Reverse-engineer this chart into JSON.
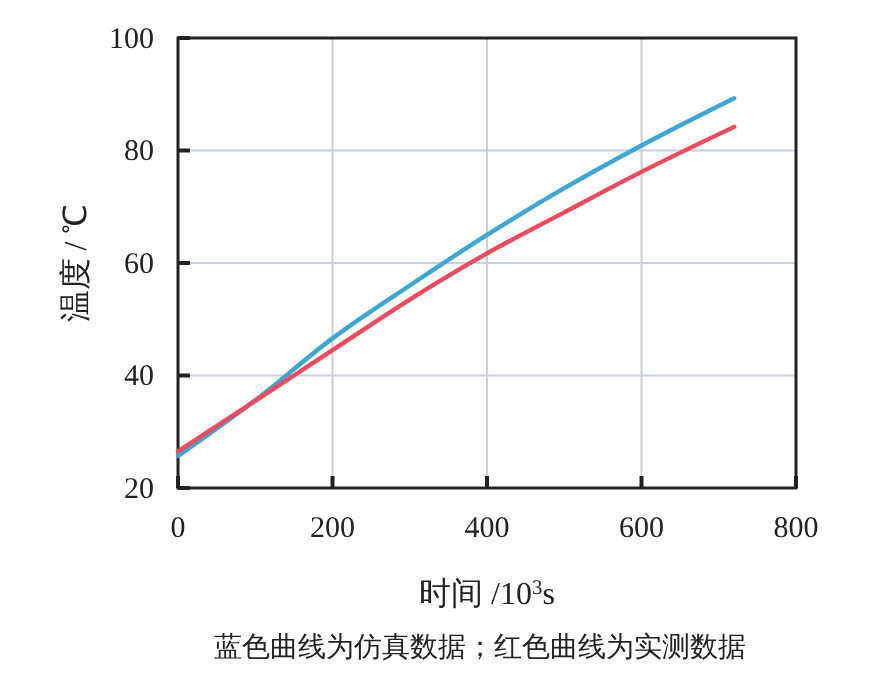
{
  "chart_data": {
    "type": "line",
    "xlabel": "时间 /10$^{3}$s",
    "ylabel": "温度 / ℃",
    "annotations": [
      "蓝色曲线为仿真数据；红色曲线为实测数据"
    ],
    "xlim": [
      0,
      800
    ],
    "xticks": [
      0,
      200,
      400,
      600,
      800
    ],
    "ylim": [
      20,
      100
    ],
    "yticks": [
      20,
      40,
      60,
      80,
      100
    ],
    "grid": true,
    "series": [
      {
        "color": "#3ea6d4",
        "x": [
          0,
          100,
          200,
          300,
          400,
          500,
          600,
          720
        ],
        "values": [
          25.7,
          35.6,
          46.6,
          56,
          65,
          73.3,
          80.9,
          89.3
        ]
      },
      {
        "color": "#ee4a5e",
        "x": [
          0,
          100,
          200,
          300,
          400,
          500,
          600,
          720
        ],
        "values": [
          26.5,
          35.5,
          44.5,
          53.5,
          61.7,
          69,
          76.2,
          84.2
        ]
      }
    ]
  }
}
